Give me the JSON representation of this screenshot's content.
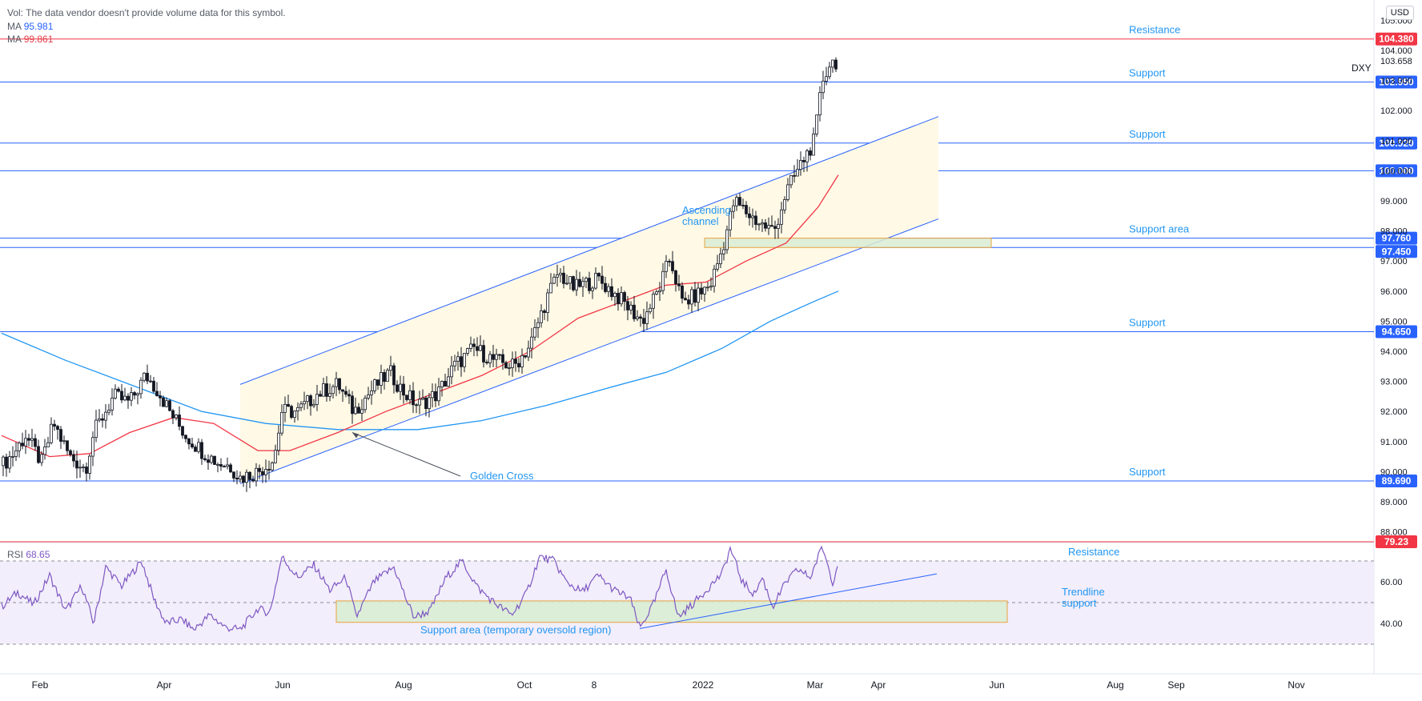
{
  "legend": {
    "vol_label": "Vol:",
    "vol_text": "The data vendor doesn't provide volume data for this symbol.",
    "ma1_label": "MA",
    "ma1_value": "95.981",
    "ma2_label": "MA",
    "ma2_value": "99.861"
  },
  "symbol": "DXY",
  "currency_button": "USD",
  "rsi_legend": {
    "label": "RSI",
    "value": "68.65"
  },
  "colors": {
    "up_candle": "#ffffff",
    "down_candle": "#131722",
    "level_line": "#2962ff",
    "resistance_line": "#f23645",
    "ma_fast": "#f23645",
    "ma_slow": "#2196f3",
    "channel_fill": "#fff9e6",
    "support_area_fill": "#d9ecd4",
    "support_area_border": "#e8a23c",
    "rsi_line": "#7e57c2",
    "rsi_band": "#f2eefb"
  },
  "chart_data": [
    {
      "type": "candlestick",
      "symbol": "DXY",
      "last_price": 103.658,
      "x_tick_labels": [
        "Feb",
        "Apr",
        "Jun",
        "Aug",
        "Oct",
        "8",
        "2022",
        "Mar",
        "Apr",
        "Jun",
        "Aug",
        "Sep",
        "Nov"
      ],
      "y_tick_labels": [
        "105.000",
        "104.000",
        "103.000",
        "102.000",
        "101.000",
        "100.000",
        "99.000",
        "98.000",
        "97.000",
        "96.000",
        "95.000",
        "94.000",
        "93.000",
        "92.000",
        "91.000",
        "90.000",
        "89.000",
        "88.000"
      ],
      "ylim": [
        87.8,
        105.4
      ],
      "grid": false,
      "ohlc_path": [
        {
          "t": 0,
          "p": 90.2
        },
        {
          "t": 15,
          "p": 90.6
        },
        {
          "t": 30,
          "p": 91.2
        },
        {
          "t": 50,
          "p": 90.3
        },
        {
          "t": 65,
          "p": 91.6
        },
        {
          "t": 85,
          "p": 90.5
        },
        {
          "t": 105,
          "p": 90.1
        },
        {
          "t": 115,
          "p": 91.3
        },
        {
          "t": 140,
          "p": 92.5
        },
        {
          "t": 160,
          "p": 92.3
        },
        {
          "t": 180,
          "p": 93.2
        },
        {
          "t": 195,
          "p": 92.7
        },
        {
          "t": 210,
          "p": 92.0
        },
        {
          "t": 230,
          "p": 91.2
        },
        {
          "t": 250,
          "p": 90.7
        },
        {
          "t": 270,
          "p": 90.3
        },
        {
          "t": 285,
          "p": 90.2
        },
        {
          "t": 298,
          "p": 89.8
        },
        {
          "t": 320,
          "p": 90.0
        },
        {
          "t": 340,
          "p": 90.4
        },
        {
          "t": 350,
          "p": 92.0
        },
        {
          "t": 370,
          "p": 92.0
        },
        {
          "t": 395,
          "p": 92.6
        },
        {
          "t": 420,
          "p": 92.9
        },
        {
          "t": 440,
          "p": 92.0
        },
        {
          "t": 465,
          "p": 92.8
        },
        {
          "t": 485,
          "p": 93.3
        },
        {
          "t": 500,
          "p": 92.7
        },
        {
          "t": 520,
          "p": 92.2
        },
        {
          "t": 545,
          "p": 92.6
        },
        {
          "t": 565,
          "p": 93.5
        },
        {
          "t": 590,
          "p": 94.1
        },
        {
          "t": 615,
          "p": 93.7
        },
        {
          "t": 640,
          "p": 93.5
        },
        {
          "t": 660,
          "p": 94.2
        },
        {
          "t": 680,
          "p": 95.7
        },
        {
          "t": 695,
          "p": 96.6
        },
        {
          "t": 715,
          "p": 96.1
        },
        {
          "t": 745,
          "p": 96.4
        },
        {
          "t": 770,
          "p": 95.8
        },
        {
          "t": 800,
          "p": 95.0
        },
        {
          "t": 820,
          "p": 96.0
        },
        {
          "t": 835,
          "p": 97.1
        },
        {
          "t": 850,
          "p": 95.6
        },
        {
          "t": 870,
          "p": 95.9
        },
        {
          "t": 885,
          "p": 96.2
        },
        {
          "t": 900,
          "p": 97.4
        },
        {
          "t": 915,
          "p": 99.0
        },
        {
          "t": 935,
          "p": 98.5
        },
        {
          "t": 950,
          "p": 98.2
        },
        {
          "t": 965,
          "p": 98.0
        },
        {
          "t": 980,
          "p": 99.3
        },
        {
          "t": 1000,
          "p": 100.3
        },
        {
          "t": 1015,
          "p": 101.0
        },
        {
          "t": 1025,
          "p": 103.0
        },
        {
          "t": 1035,
          "p": 103.6
        },
        {
          "t": 1045,
          "p": 103.658
        }
      ],
      "moving_averages": [
        {
          "name": "MA",
          "value": 95.981,
          "path": [
            {
              "t": 0,
              "p": 94.6
            },
            {
              "t": 80,
              "p": 93.7
            },
            {
              "t": 160,
              "p": 92.9
            },
            {
              "t": 250,
              "p": 92.0
            },
            {
              "t": 330,
              "p": 91.6
            },
            {
              "t": 420,
              "p": 91.4
            },
            {
              "t": 520,
              "p": 91.4
            },
            {
              "t": 600,
              "p": 91.7
            },
            {
              "t": 680,
              "p": 92.2
            },
            {
              "t": 760,
              "p": 92.8
            },
            {
              "t": 830,
              "p": 93.3
            },
            {
              "t": 900,
              "p": 94.1
            },
            {
              "t": 960,
              "p": 95.0
            },
            {
              "t": 1010,
              "p": 95.6
            },
            {
              "t": 1045,
              "p": 96.0
            }
          ]
        },
        {
          "name": "MA",
          "value": 99.861,
          "path": [
            {
              "t": 0,
              "p": 91.2
            },
            {
              "t": 60,
              "p": 90.5
            },
            {
              "t": 110,
              "p": 90.6
            },
            {
              "t": 160,
              "p": 91.3
            },
            {
              "t": 215,
              "p": 91.8
            },
            {
              "t": 265,
              "p": 91.6
            },
            {
              "t": 320,
              "p": 90.7
            },
            {
              "t": 360,
              "p": 90.7
            },
            {
              "t": 420,
              "p": 91.3
            },
            {
              "t": 480,
              "p": 92.0
            },
            {
              "t": 540,
              "p": 92.6
            },
            {
              "t": 600,
              "p": 93.2
            },
            {
              "t": 660,
              "p": 94.0
            },
            {
              "t": 720,
              "p": 95.1
            },
            {
              "t": 780,
              "p": 95.7
            },
            {
              "t": 830,
              "p": 96.2
            },
            {
              "t": 880,
              "p": 96.3
            },
            {
              "t": 930,
              "p": 97.0
            },
            {
              "t": 980,
              "p": 97.6
            },
            {
              "t": 1020,
              "p": 98.8
            },
            {
              "t": 1045,
              "p": 99.861
            }
          ]
        }
      ],
      "horizontal_levels": [
        {
          "value": 104.38,
          "label": "104.380",
          "annotation": "Resistance",
          "kind": "resistance"
        },
        {
          "value": 102.95,
          "label": "102.950",
          "annotation": "Support",
          "kind": "support"
        },
        {
          "value": 100.92,
          "label": "100.920",
          "annotation": "Support",
          "kind": "support"
        },
        {
          "value": 100.0,
          "label": "100.000",
          "annotation": "",
          "kind": "support"
        },
        {
          "value": 97.76,
          "label": "97.760",
          "annotation": "Support area",
          "kind": "support"
        },
        {
          "value": 97.45,
          "label": "97.450",
          "annotation": "",
          "kind": "support"
        },
        {
          "value": 94.65,
          "label": "94.650",
          "annotation": "Support",
          "kind": "support"
        },
        {
          "value": 89.69,
          "label": "89.690",
          "annotation": "Support",
          "kind": "support"
        }
      ],
      "channel": {
        "label_line1": "Ascending",
        "label_line2": "channel",
        "upper": [
          {
            "t": 298,
            "p": 92.9
          },
          {
            "t": 1170,
            "p": 101.8
          }
        ],
        "lower": [
          {
            "t": 298,
            "p": 89.6
          },
          {
            "t": 1170,
            "p": 98.4
          }
        ]
      },
      "support_area": {
        "from": 97.45,
        "to": 97.76,
        "t_start": 878,
        "t_end": 1236
      },
      "annotations": [
        {
          "text": "Golden Cross",
          "arrow_to": {
            "t": 438,
            "p": 91.3
          }
        }
      ]
    },
    {
      "type": "line",
      "name": "RSI",
      "last_value": 68.65,
      "y_tick_labels": [
        "60.00",
        "40.00"
      ],
      "ylim": [
        20,
        82
      ],
      "guide_levels": [
        70,
        50,
        30
      ],
      "resistance": {
        "value": 79.23,
        "label": "79.23",
        "annotation": "Resistance"
      },
      "trendline": {
        "label_line1": "Trendline",
        "label_line2": "support",
        "from": {
          "t": 797,
          "p": 37.5
        },
        "to": {
          "t": 1168,
          "p": 63.8
        }
      },
      "support_area": {
        "label": "Support area (temporary oversold region)",
        "from": 40.5,
        "to": 50.8,
        "t_start": 418,
        "t_end": 1256
      },
      "path": [
        {
          "t": 0,
          "p": 48
        },
        {
          "t": 20,
          "p": 55
        },
        {
          "t": 40,
          "p": 49
        },
        {
          "t": 60,
          "p": 63
        },
        {
          "t": 80,
          "p": 46
        },
        {
          "t": 100,
          "p": 58
        },
        {
          "t": 115,
          "p": 40
        },
        {
          "t": 130,
          "p": 67
        },
        {
          "t": 150,
          "p": 58
        },
        {
          "t": 175,
          "p": 70
        },
        {
          "t": 190,
          "p": 52
        },
        {
          "t": 205,
          "p": 40
        },
        {
          "t": 225,
          "p": 42
        },
        {
          "t": 240,
          "p": 37
        },
        {
          "t": 260,
          "p": 44
        },
        {
          "t": 280,
          "p": 38
        },
        {
          "t": 298,
          "p": 37
        },
        {
          "t": 320,
          "p": 47
        },
        {
          "t": 335,
          "p": 45
        },
        {
          "t": 350,
          "p": 72
        },
        {
          "t": 370,
          "p": 62
        },
        {
          "t": 390,
          "p": 68
        },
        {
          "t": 410,
          "p": 56
        },
        {
          "t": 430,
          "p": 62
        },
        {
          "t": 443,
          "p": 43
        },
        {
          "t": 465,
          "p": 60
        },
        {
          "t": 490,
          "p": 67
        },
        {
          "t": 505,
          "p": 52
        },
        {
          "t": 515,
          "p": 43
        },
        {
          "t": 535,
          "p": 46
        },
        {
          "t": 555,
          "p": 62
        },
        {
          "t": 575,
          "p": 70
        },
        {
          "t": 595,
          "p": 57
        },
        {
          "t": 615,
          "p": 50
        },
        {
          "t": 637,
          "p": 44
        },
        {
          "t": 655,
          "p": 54
        },
        {
          "t": 672,
          "p": 72
        },
        {
          "t": 690,
          "p": 70
        },
        {
          "t": 705,
          "p": 60
        },
        {
          "t": 725,
          "p": 55
        },
        {
          "t": 745,
          "p": 63
        },
        {
          "t": 765,
          "p": 56
        },
        {
          "t": 785,
          "p": 52
        },
        {
          "t": 797,
          "p": 37.5
        },
        {
          "t": 815,
          "p": 50
        },
        {
          "t": 830,
          "p": 66
        },
        {
          "t": 845,
          "p": 43
        },
        {
          "t": 865,
          "p": 50
        },
        {
          "t": 885,
          "p": 58
        },
        {
          "t": 900,
          "p": 64
        },
        {
          "t": 910,
          "p": 76
        },
        {
          "t": 925,
          "p": 60
        },
        {
          "t": 940,
          "p": 54
        },
        {
          "t": 950,
          "p": 62
        },
        {
          "t": 963,
          "p": 48
        },
        {
          "t": 980,
          "p": 60
        },
        {
          "t": 995,
          "p": 66
        },
        {
          "t": 1010,
          "p": 62
        },
        {
          "t": 1025,
          "p": 77
        },
        {
          "t": 1038,
          "p": 60
        },
        {
          "t": 1045,
          "p": 68.65
        }
      ]
    }
  ]
}
